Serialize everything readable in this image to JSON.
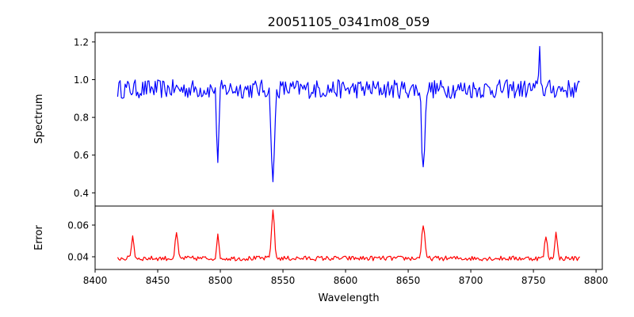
{
  "chart_data": {
    "type": "line",
    "title": "20051105_0341m08_059",
    "xlabel": "Wavelength",
    "x_ticks": [
      8400,
      8450,
      8500,
      8550,
      8600,
      8650,
      8700,
      8750,
      8800
    ],
    "xlim": [
      8400,
      8805
    ],
    "grid": false,
    "panels": [
      {
        "name": "spectrum",
        "ylabel": "Spectrum",
        "ylim": [
          0.33,
          1.25
        ],
        "y_ticks": [
          0.4,
          0.6,
          0.8,
          1.0,
          1.2
        ],
        "y_tick_labels": [
          "0.4",
          "0.6",
          "0.8",
          "1.0",
          "1.2"
        ],
        "series": [
          {
            "color": "#0000ff",
            "x_range": [
              8418,
              8787
            ],
            "step": 1,
            "baseline": 0.95,
            "noise": 0.05,
            "features": [
              {
                "center": 8498,
                "depth": 0.38,
                "width": 0.9
              },
              {
                "center": 8542,
                "depth": 0.52,
                "width": 1.2
              },
              {
                "center": 8662,
                "depth": 0.45,
                "width": 1.1
              },
              {
                "center": 8755,
                "depth": -0.26,
                "width": 0.5
              }
            ]
          }
        ]
      },
      {
        "name": "error",
        "ylabel": "Error",
        "ylim": [
          0.032,
          0.072
        ],
        "y_ticks": [
          0.04,
          0.06
        ],
        "y_tick_labels": [
          "0.04",
          "0.06"
        ],
        "series": [
          {
            "color": "#ff0000",
            "x_range": [
              8418,
              8787
            ],
            "step": 1,
            "baseline": 0.039,
            "noise": 0.0015,
            "features": [
              {
                "center": 8430,
                "depth": -0.014,
                "width": 1.0
              },
              {
                "center": 8465,
                "depth": -0.016,
                "width": 1.0
              },
              {
                "center": 8498,
                "depth": -0.014,
                "width": 0.9
              },
              {
                "center": 8542,
                "depth": -0.031,
                "width": 1.1
              },
              {
                "center": 8662,
                "depth": -0.021,
                "width": 1.2
              },
              {
                "center": 8760,
                "depth": -0.014,
                "width": 1.0
              },
              {
                "center": 8768,
                "depth": -0.016,
                "width": 1.0
              }
            ]
          }
        ]
      }
    ]
  }
}
